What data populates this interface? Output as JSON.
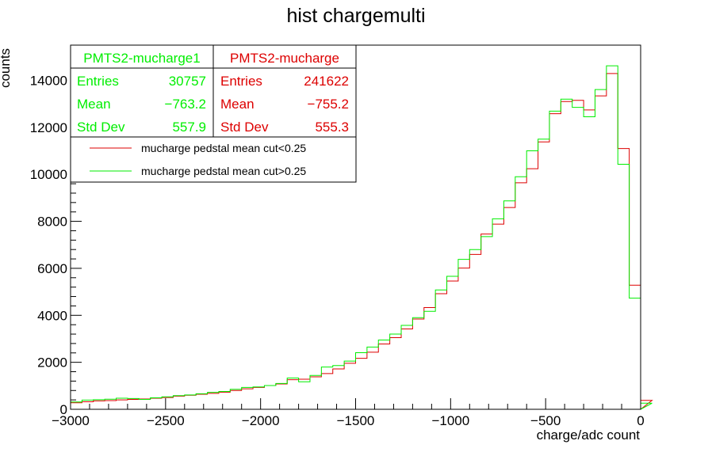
{
  "chart_data": {
    "type": "histogram",
    "title": "hist chargemulti",
    "xlabel": "charge/adc count",
    "ylabel": "counts",
    "xlim": [
      -3000,
      0
    ],
    "ylim": [
      0,
      15500
    ],
    "x_ticks": [
      -3000,
      -2500,
      -2000,
      -1500,
      -1000,
      -500,
      0
    ],
    "x_tick_labels": [
      "−3000",
      "−2500",
      "−2000",
      "−1500",
      "−1000",
      "−500",
      "0"
    ],
    "y_ticks": [
      0,
      2000,
      4000,
      6000,
      8000,
      10000,
      12000,
      14000
    ],
    "y_tick_labels": [
      "0",
      "2000",
      "4000",
      "6000",
      "8000",
      "10000",
      "12000",
      "14000"
    ],
    "bin_width": 60,
    "bin_edges_start": -3000,
    "series": [
      {
        "name": "mucharge pedstal mean cut<0.25",
        "color": "#dd0000",
        "values": [
          280,
          320,
          360,
          370,
          400,
          420,
          440,
          470,
          500,
          560,
          600,
          640,
          680,
          730,
          800,
          870,
          930,
          1010,
          1080,
          1260,
          1280,
          1380,
          1520,
          1720,
          1960,
          2170,
          2430,
          2780,
          3050,
          3420,
          3840,
          4330,
          4920,
          5460,
          6010,
          6590,
          7460,
          7880,
          8590,
          9640,
          10240,
          11380,
          12580,
          13100,
          13150,
          12740,
          13340,
          14290,
          11100,
          5280,
          380
        ]
      },
      {
        "name": "mucharge pedstal mean cut>0.25",
        "color": "#00ee00",
        "values": [
          310,
          390,
          410,
          430,
          470,
          460,
          420,
          490,
          530,
          580,
          610,
          660,
          720,
          760,
          850,
          930,
          950,
          1010,
          1100,
          1330,
          1170,
          1440,
          1800,
          1860,
          2050,
          2410,
          2650,
          2950,
          3200,
          3570,
          3900,
          4170,
          5080,
          5660,
          6380,
          6800,
          7350,
          8110,
          8870,
          9900,
          11000,
          11500,
          12690,
          13200,
          12850,
          12450,
          13610,
          14620,
          10430,
          4730,
          260
        ]
      }
    ],
    "stats_boxes": [
      {
        "title": "PMTS2-mucharge1",
        "color": "#00ee00",
        "rows": [
          {
            "label": "Entries",
            "value": "30757"
          },
          {
            "label": "Mean",
            "value": "−763.2"
          },
          {
            "label": "Std Dev",
            "value": "557.9"
          }
        ]
      },
      {
        "title": "PMTS2-mucharge",
        "color": "#dd0000",
        "rows": [
          {
            "label": "Entries",
            "value": "241622"
          },
          {
            "label": "Mean",
            "value": "−755.2"
          },
          {
            "label": "Std Dev",
            "value": "555.3"
          }
        ]
      }
    ],
    "legend": {
      "position": "top-left",
      "entries": [
        {
          "label": "mucharge pedstal mean cut<0.25",
          "color": "#dd0000"
        },
        {
          "label": "mucharge pedstal mean cut>0.25",
          "color": "#00ee00"
        }
      ]
    }
  }
}
